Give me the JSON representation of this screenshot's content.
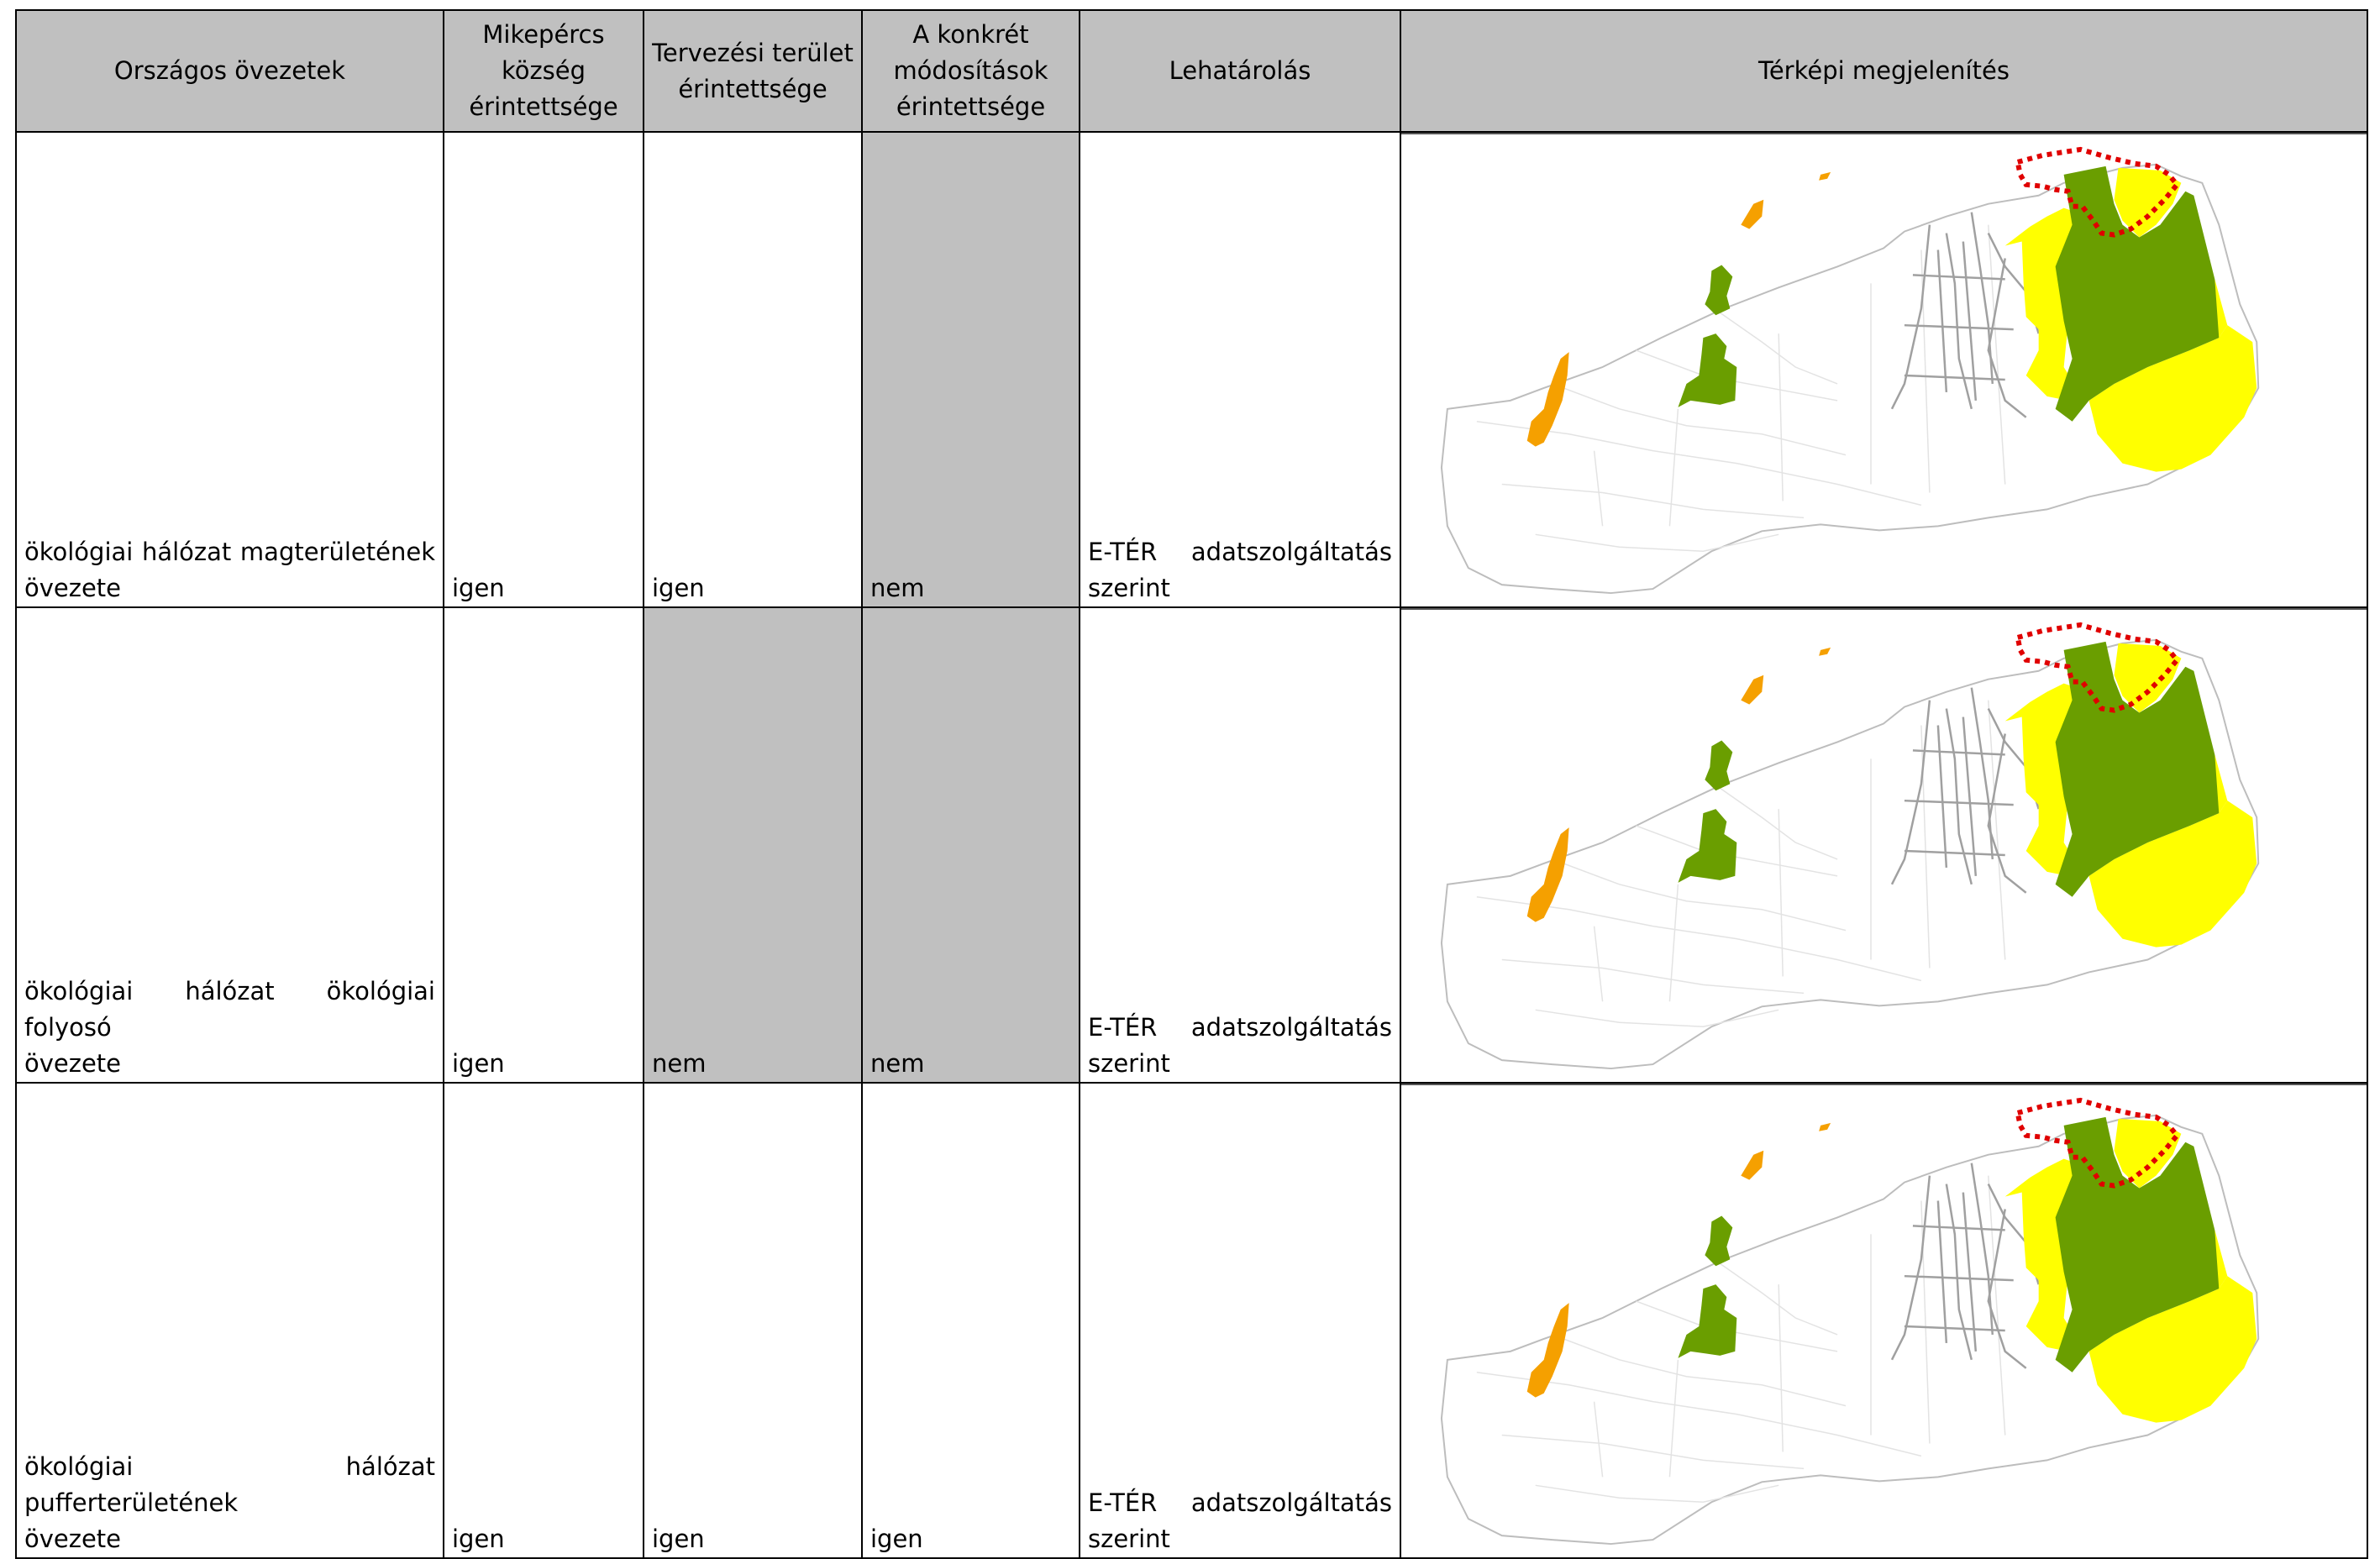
{
  "headers": {
    "col1": "Országos övezetek",
    "col2_l1": "Mikepércs",
    "col2_l2": "község",
    "col2_l3": "érintettsége",
    "col3_l1": "Tervezési terület",
    "col3_l2": "érintettsége",
    "col4_l1": "A konkrét",
    "col4_l2": "módosítások",
    "col4_l3": "érintettsége",
    "col5": "Lehatárolás",
    "col6": "Térképi megjelenítés"
  },
  "rows": [
    {
      "zone_l1": "ökológiai hálózat magterületének",
      "zone_l2": "övezete",
      "village": "igen",
      "planning": "igen",
      "modifications": "nem",
      "delim_l1": "E-TÉR adatszolgáltatás",
      "delim_l2": "szerint",
      "planning_grey": false,
      "modifications_grey": true
    },
    {
      "zone_l1": "ökológiai hálózat ökológiai folyosó",
      "zone_l2": "övezete",
      "village": "igen",
      "planning": "nem",
      "modifications": "nem",
      "delim_l1": "E-TÉR adatszolgáltatás",
      "delim_l2": "szerint",
      "planning_grey": true,
      "modifications_grey": true
    },
    {
      "zone_l1": "ökológiai hálózat pufferterületének",
      "zone_l2": "övezete",
      "village": "igen",
      "planning": "igen",
      "modifications": "igen",
      "delim_l1": "E-TÉR adatszolgáltatás",
      "delim_l2": "szerint",
      "planning_grey": false,
      "modifications_grey": false
    }
  ],
  "map_legend_colors": {
    "core_area": "#6a9e00",
    "buffer_area": "#ffff00",
    "orange_patch": "#f5a000",
    "boundary_outline": "#e00000",
    "settlement_lines": "#9a9a9a"
  }
}
